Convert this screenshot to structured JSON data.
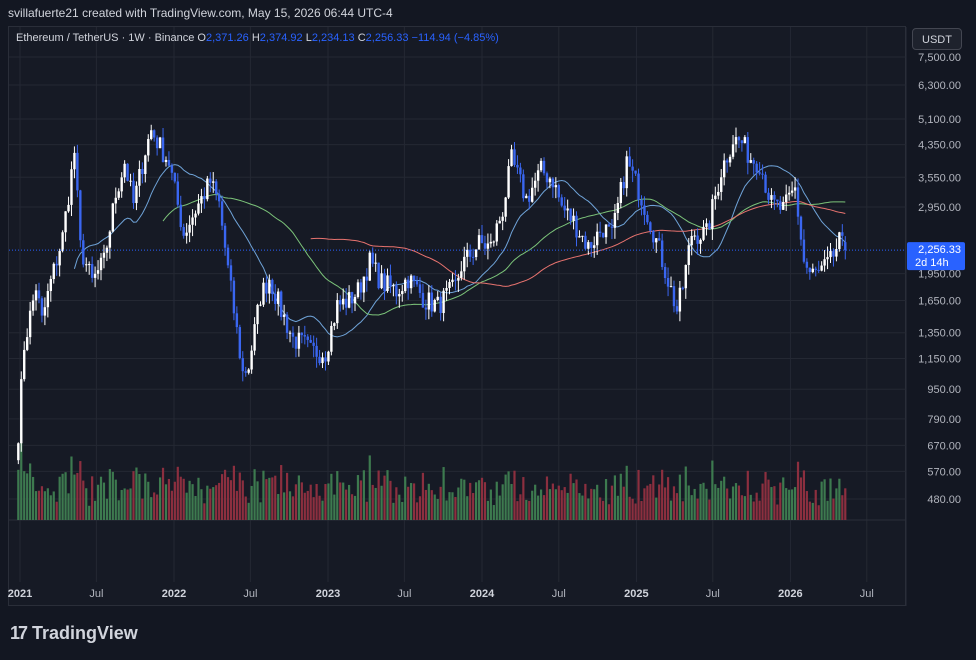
{
  "caption": {
    "user": "svillafuerte21",
    "text": "created with TradingView.com, May 15, 2026 06:44 UTC-4"
  },
  "legend": {
    "symbol": "Ethereum / TetherUS · 1W · Binance",
    "o_label": "O",
    "o_value": "2,371.26",
    "h_label": "H",
    "h_value": "2,374.92",
    "l_label": "L",
    "l_value": "2,234.13",
    "c_label": "C",
    "c_value": "2,256.33",
    "change": "−114.94 (−4.85%)"
  },
  "currency_button": "USDT",
  "last_price": {
    "value": "2,256.33",
    "countdown": "2d 14h",
    "color": "#2962ff"
  },
  "logo_text": "TradingView",
  "chart_data": {
    "type": "candlestick",
    "symbol": "ETHUSDT",
    "interval": "1W",
    "y_scale": "log",
    "y_ticks": [
      "7,500.00",
      "6,300.00",
      "5,100.00",
      "4,350.00",
      "3,550.00",
      "2,950.00",
      "1,950.00",
      "1,650.00",
      "1,350.00",
      "1,150.00",
      "950.00",
      "790.00",
      "670.00",
      "570.00",
      "480.00"
    ],
    "x_ticks": [
      "2021",
      "Jul",
      "2022",
      "Jul",
      "2023",
      "Jul",
      "2024",
      "Jul",
      "2025",
      "Jul",
      "2026",
      "Jul"
    ],
    "colors": {
      "up": "#ffffff",
      "down": "#3a66f0",
      "ma_fast": "#6fa3d8",
      "ma_mid": "#7cc47a",
      "ma_slow": "#e8736f",
      "vol_up": "#3d7a4f",
      "vol_down": "#8c2f3f"
    },
    "anchors": [
      [
        "2020-12-28",
        730
      ],
      [
        "2021-01-11",
        1250
      ],
      [
        "2021-02-08",
        1800
      ],
      [
        "2021-02-22",
        1450
      ],
      [
        "2021-03-15",
        1850
      ],
      [
        "2021-04-12",
        2450
      ],
      [
        "2021-05-10",
        4150
      ],
      [
        "2021-05-24",
        2300
      ],
      [
        "2021-06-21",
        1850
      ],
      [
        "2021-07-19",
        2100
      ],
      [
        "2021-08-16",
        3200
      ],
      [
        "2021-09-06",
        3900
      ],
      [
        "2021-09-27",
        3000
      ],
      [
        "2021-10-25",
        4200
      ],
      [
        "2021-11-08",
        4750
      ],
      [
        "2021-11-29",
        4300
      ],
      [
        "2021-12-20",
        3900
      ],
      [
        "2022-01-24",
        2500
      ],
      [
        "2022-02-21",
        2900
      ],
      [
        "2022-03-28",
        3450
      ],
      [
        "2022-04-18",
        3000
      ],
      [
        "2022-05-09",
        2000
      ],
      [
        "2022-06-13",
        1050
      ],
      [
        "2022-06-27",
        1100
      ],
      [
        "2022-07-25",
        1700
      ],
      [
        "2022-08-15",
        1900
      ],
      [
        "2022-09-12",
        1550
      ],
      [
        "2022-10-10",
        1300
      ],
      [
        "2022-11-07",
        1250
      ],
      [
        "2022-11-21",
        1200
      ],
      [
        "2022-12-26",
        1200
      ],
      [
        "2023-01-23",
        1600
      ],
      [
        "2023-02-20",
        1650
      ],
      [
        "2023-03-13",
        1750
      ],
      [
        "2023-04-10",
        2100
      ],
      [
        "2023-05-08",
        1850
      ],
      [
        "2023-06-12",
        1750
      ],
      [
        "2023-07-10",
        1900
      ],
      [
        "2023-08-21",
        1650
      ],
      [
        "2023-09-18",
        1600
      ],
      [
        "2023-10-30",
        1800
      ],
      [
        "2023-11-13",
        2050
      ],
      [
        "2023-12-25",
        2350
      ],
      [
        "2024-01-22",
        2300
      ],
      [
        "2024-02-19",
        2900
      ],
      [
        "2024-03-11",
        3950
      ],
      [
        "2024-04-15",
        3100
      ],
      [
        "2024-05-20",
        3700
      ],
      [
        "2024-06-17",
        3500
      ],
      [
        "2024-07-08",
        2950
      ],
      [
        "2024-08-05",
        2700
      ],
      [
        "2024-09-09",
        2300
      ],
      [
        "2024-10-14",
        2600
      ],
      [
        "2024-11-04",
        2450
      ],
      [
        "2024-12-09",
        3900
      ],
      [
        "2025-01-06",
        3300
      ],
      [
        "2025-02-03",
        2700
      ],
      [
        "2025-03-10",
        2000
      ],
      [
        "2025-04-07",
        1550
      ],
      [
        "2025-04-21",
        1800
      ],
      [
        "2025-05-12",
        2500
      ],
      [
        "2025-06-16",
        2500
      ],
      [
        "2025-07-21",
        3700
      ],
      [
        "2025-08-18",
        4500
      ],
      [
        "2025-09-08",
        4400
      ],
      [
        "2025-09-29",
        4000
      ],
      [
        "2025-10-20",
        3900
      ],
      [
        "2025-11-17",
        3000
      ],
      [
        "2025-12-15",
        2900
      ],
      [
        "2026-01-12",
        3300
      ],
      [
        "2026-02-02",
        2100
      ],
      [
        "2026-02-16",
        1950
      ],
      [
        "2026-03-09",
        1950
      ],
      [
        "2026-04-06",
        2100
      ],
      [
        "2026-04-27",
        2370
      ],
      [
        "2026-05-11",
        2256
      ]
    ]
  }
}
